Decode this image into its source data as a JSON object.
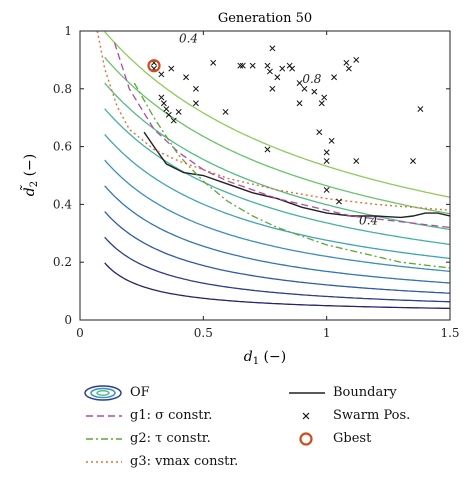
{
  "chart_data": {
    "type": "line",
    "title": "Generation 50",
    "xlabel": "d1 (−)",
    "ylabel": "d̃2 (−)",
    "xlim": [
      0,
      1.5
    ],
    "ylim": [
      0,
      1
    ],
    "x_ticks": [
      "0",
      "0.5",
      "1",
      "1.5"
    ],
    "y_ticks": [
      "0",
      "0.2",
      "0.4",
      "0.6",
      "0.8",
      "1"
    ],
    "grid": false,
    "contour_labels": [
      {
        "text": "0.4",
        "x": 1.17,
        "y": 0.33
      },
      {
        "text": "0.8",
        "x": 0.94,
        "y": 0.82
      },
      {
        "text": "0.4",
        "x": 0.44,
        "y": 0.96
      }
    ],
    "contour_levels": [
      0.2,
      0.3,
      0.4,
      0.5,
      0.6,
      0.7,
      0.8,
      0.9,
      1.0,
      1.1
    ],
    "series": [
      {
        "name": "Boundary",
        "x": [
          0.26,
          0.3,
          0.35,
          0.42,
          0.5,
          0.6,
          0.7,
          0.8,
          0.9,
          1.0,
          1.1,
          1.2,
          1.3,
          1.35,
          1.4,
          1.45,
          1.5
        ],
        "y": [
          0.65,
          0.6,
          0.54,
          0.51,
          0.5,
          0.47,
          0.44,
          0.42,
          0.39,
          0.37,
          0.36,
          0.36,
          0.355,
          0.36,
          0.37,
          0.37,
          0.36
        ]
      },
      {
        "name": "g1: σ constr.",
        "x": [
          0.14,
          0.2,
          0.3,
          0.4,
          0.5,
          0.6,
          0.7,
          0.8,
          0.9,
          1.0,
          1.1,
          1.2,
          1.3,
          1.4,
          1.5
        ],
        "y": [
          0.96,
          0.8,
          0.66,
          0.58,
          0.52,
          0.48,
          0.45,
          0.42,
          0.4,
          0.38,
          0.36,
          0.35,
          0.34,
          0.33,
          0.32
        ]
      },
      {
        "name": "g2: τ constr.",
        "x": [
          0.22,
          0.3,
          0.4,
          0.5,
          0.6,
          0.7,
          0.8,
          0.9,
          1.0,
          1.1,
          1.2,
          1.3,
          1.4,
          1.5
        ],
        "y": [
          0.82,
          0.7,
          0.57,
          0.48,
          0.41,
          0.36,
          0.32,
          0.29,
          0.26,
          0.24,
          0.22,
          0.2,
          0.19,
          0.18
        ]
      },
      {
        "name": "g3: vmax constr.",
        "x": [
          0.07,
          0.1,
          0.15,
          0.2,
          0.3,
          0.4,
          0.5,
          0.6,
          0.8,
          1.0,
          1.2,
          1.5
        ],
        "y": [
          1.0,
          0.87,
          0.74,
          0.66,
          0.59,
          0.55,
          0.52,
          0.49,
          0.45,
          0.42,
          0.4,
          0.38
        ]
      }
    ],
    "swarm_positions": [
      [
        0.3,
        0.87
      ],
      [
        0.3,
        0.89
      ],
      [
        0.33,
        0.85
      ],
      [
        0.37,
        0.87
      ],
      [
        0.33,
        0.77
      ],
      [
        0.34,
        0.75
      ],
      [
        0.35,
        0.73
      ],
      [
        0.36,
        0.71
      ],
      [
        0.38,
        0.69
      ],
      [
        0.4,
        0.72
      ],
      [
        0.43,
        0.84
      ],
      [
        0.47,
        0.8
      ],
      [
        0.47,
        0.75
      ],
      [
        0.54,
        0.89
      ],
      [
        0.59,
        0.72
      ],
      [
        0.65,
        0.88
      ],
      [
        0.66,
        0.88
      ],
      [
        0.7,
        0.88
      ],
      [
        0.76,
        0.88
      ],
      [
        0.77,
        0.86
      ],
      [
        0.78,
        0.94
      ],
      [
        0.8,
        0.84
      ],
      [
        0.82,
        0.87
      ],
      [
        0.85,
        0.88
      ],
      [
        0.78,
        0.8
      ],
      [
        0.76,
        0.59
      ],
      [
        0.86,
        0.87
      ],
      [
        0.89,
        0.75
      ],
      [
        0.89,
        0.82
      ],
      [
        0.91,
        0.8
      ],
      [
        0.95,
        0.79
      ],
      [
        0.97,
        0.65
      ],
      [
        0.98,
        0.75
      ],
      [
        0.99,
        0.77
      ],
      [
        1.0,
        0.58
      ],
      [
        1.0,
        0.55
      ],
      [
        1.0,
        0.45
      ],
      [
        1.02,
        0.62
      ],
      [
        1.03,
        0.84
      ],
      [
        1.05,
        0.41
      ],
      [
        1.08,
        0.89
      ],
      [
        1.09,
        0.87
      ],
      [
        1.12,
        0.9
      ],
      [
        1.12,
        0.55
      ],
      [
        1.35,
        0.55
      ],
      [
        1.38,
        0.73
      ]
    ],
    "gbest": [
      0.3,
      0.88
    ],
    "colors": {
      "of_contours": [
        "#26246e",
        "#2b3f8c",
        "#2f5aa6",
        "#3275b4",
        "#3a8fbd",
        "#3fa3b5",
        "#45b2a0",
        "#52bd86",
        "#69c46b",
        "#8ecb57"
      ],
      "boundary": "#222222",
      "g1": "#b04aa8",
      "g2": "#5aa832",
      "g3": "#e0703a",
      "swarm": "#111111",
      "gbest": "#d04a1a"
    },
    "legend": [
      {
        "key": "of",
        "label": "OF"
      },
      {
        "key": "g1",
        "label": "g1: σ constr."
      },
      {
        "key": "g2",
        "label": "g2: τ constr."
      },
      {
        "key": "g3",
        "label": "g3: vmax constr."
      },
      {
        "key": "boundary",
        "label": "Boundary"
      },
      {
        "key": "swarm",
        "label": "Swarm Pos."
      },
      {
        "key": "gbest",
        "label": "Gbest"
      }
    ]
  }
}
